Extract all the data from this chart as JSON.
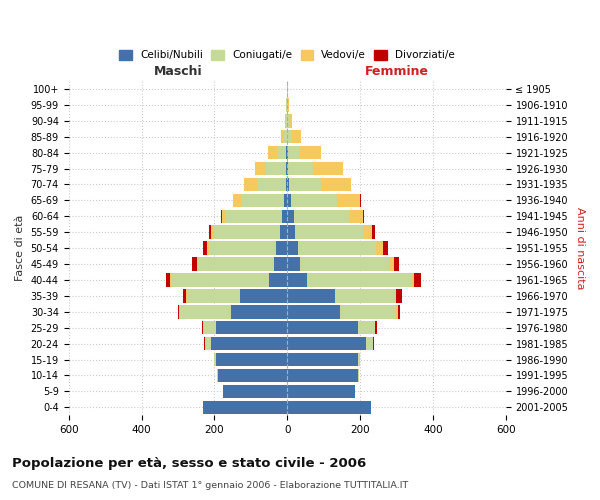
{
  "age_groups": [
    "0-4",
    "5-9",
    "10-14",
    "15-19",
    "20-24",
    "25-29",
    "30-34",
    "35-39",
    "40-44",
    "45-49",
    "50-54",
    "55-59",
    "60-64",
    "65-69",
    "70-74",
    "75-79",
    "80-84",
    "85-89",
    "90-94",
    "95-99",
    "100+"
  ],
  "birth_years": [
    "2001-2005",
    "1996-2000",
    "1991-1995",
    "1986-1990",
    "1981-1985",
    "1976-1980",
    "1971-1975",
    "1966-1970",
    "1961-1965",
    "1956-1960",
    "1951-1955",
    "1946-1950",
    "1941-1945",
    "1936-1940",
    "1931-1935",
    "1926-1930",
    "1921-1925",
    "1916-1920",
    "1911-1915",
    "1906-1910",
    "≤ 1905"
  ],
  "male_celibi": [
    230,
    175,
    190,
    195,
    210,
    195,
    155,
    130,
    50,
    35,
    30,
    20,
    15,
    8,
    4,
    3,
    2,
    0,
    0,
    0,
    0
  ],
  "male_coniugati": [
    0,
    0,
    2,
    5,
    15,
    35,
    140,
    145,
    270,
    210,
    185,
    180,
    155,
    120,
    80,
    55,
    25,
    8,
    4,
    2,
    1
  ],
  "male_vedovi": [
    0,
    0,
    0,
    0,
    1,
    2,
    1,
    2,
    2,
    3,
    5,
    8,
    10,
    20,
    35,
    30,
    25,
    10,
    3,
    1,
    0
  ],
  "male_divorziati": [
    0,
    0,
    0,
    1,
    2,
    3,
    5,
    10,
    10,
    12,
    10,
    8,
    2,
    0,
    0,
    0,
    0,
    0,
    0,
    0,
    0
  ],
  "female_celibi": [
    230,
    185,
    195,
    195,
    215,
    195,
    145,
    130,
    55,
    35,
    30,
    22,
    18,
    10,
    5,
    3,
    2,
    0,
    0,
    0,
    0
  ],
  "female_coniugati": [
    0,
    0,
    2,
    5,
    20,
    45,
    155,
    165,
    285,
    245,
    215,
    185,
    155,
    130,
    90,
    70,
    30,
    12,
    5,
    2,
    1
  ],
  "female_vedovi": [
    0,
    0,
    0,
    0,
    1,
    2,
    3,
    5,
    8,
    12,
    18,
    25,
    35,
    60,
    80,
    80,
    60,
    25,
    8,
    2,
    0
  ],
  "female_divorziati": [
    0,
    0,
    0,
    1,
    3,
    5,
    8,
    15,
    18,
    15,
    15,
    10,
    3,
    2,
    0,
    0,
    0,
    0,
    0,
    0,
    0
  ],
  "color_celibi": "#4472a8",
  "color_coniugati": "#c5d99b",
  "color_vedovi": "#f5c960",
  "color_divorziati": "#c00000",
  "title": "Popolazione per età, sesso e stato civile - 2006",
  "subtitle": "COMUNE DI RESANA (TV) - Dati ISTAT 1° gennaio 2006 - Elaborazione TUTTITALIA.IT",
  "xlabel_left": "Maschi",
  "xlabel_right": "Femmine",
  "ylabel_left": "Fasce di età",
  "ylabel_right": "Anni di nascita",
  "xmin": -600,
  "xmax": 600,
  "background_color": "#ffffff",
  "grid_color": "#cccccc"
}
